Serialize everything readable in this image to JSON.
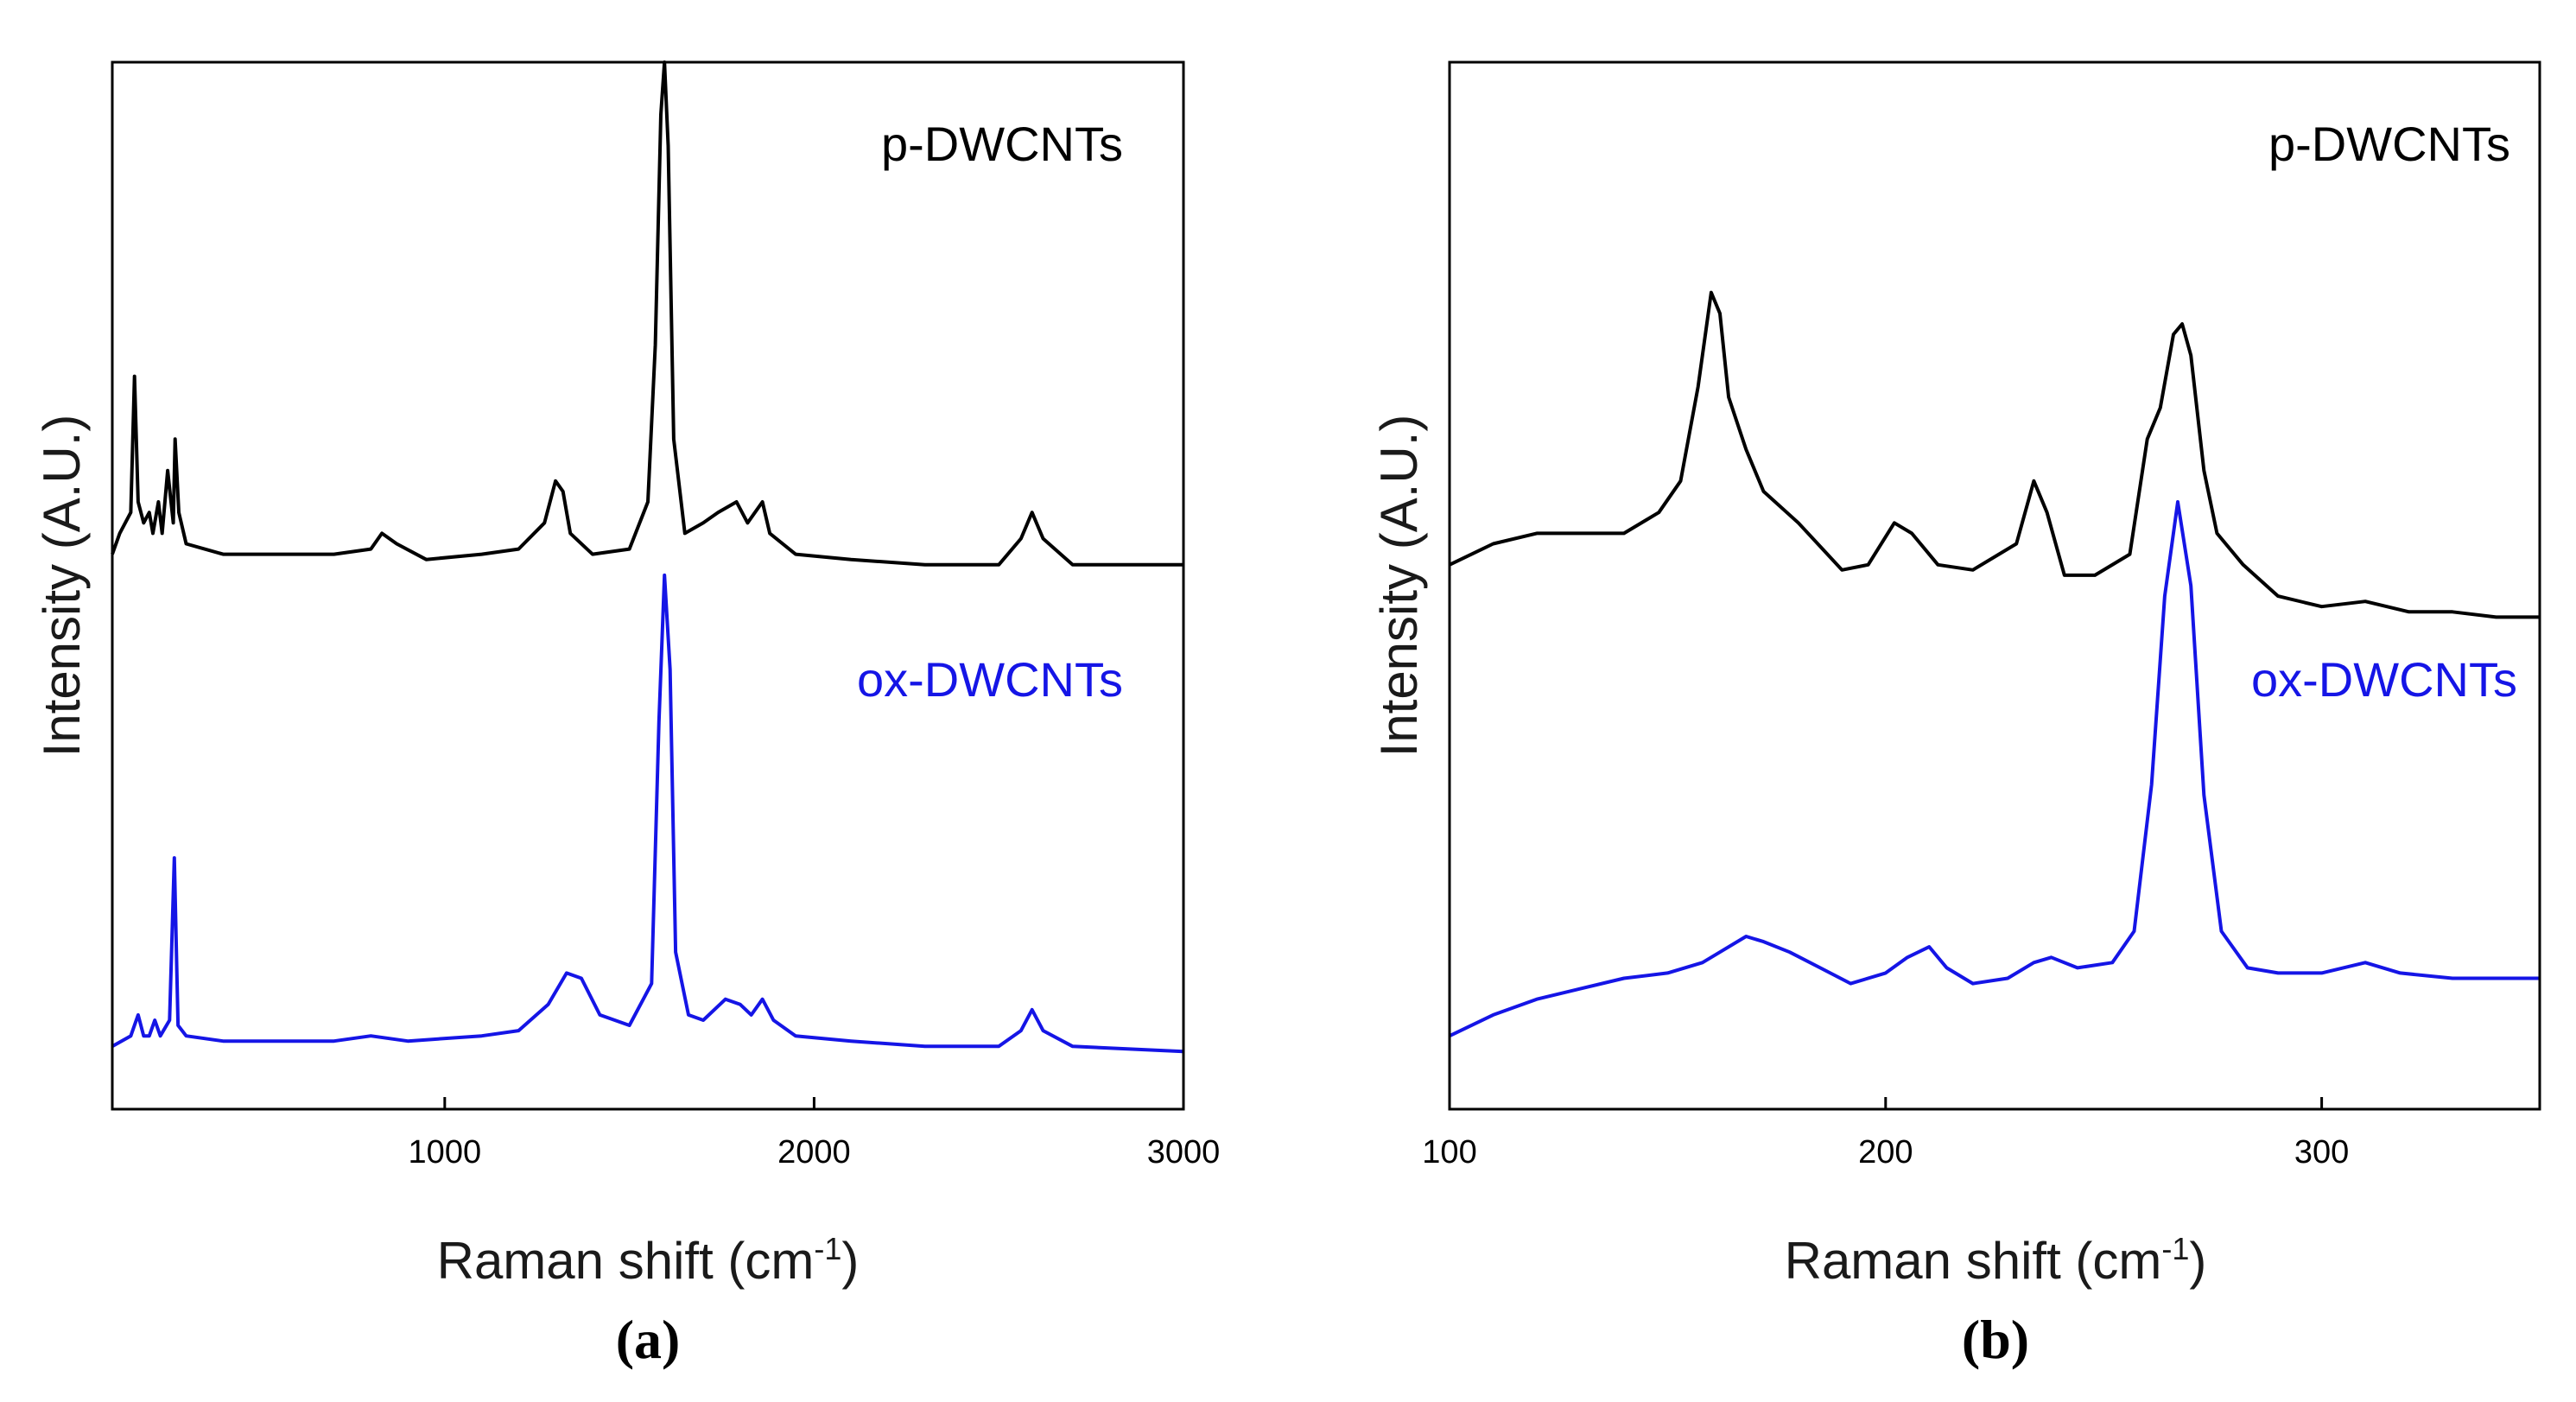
{
  "colors": {
    "p": "#000000",
    "ox": "#1515e6",
    "axis": "#000000"
  },
  "chart_data": [
    {
      "panel_label": "(a)",
      "type": "line",
      "xlabel": "Raman shift (cm-1)",
      "xlabel_main": "Raman shift (cm",
      "xlabel_sup": "-1",
      "xlabel_tail": ")",
      "ylabel": "Intensity (A.U.)",
      "xlim": [
        100,
        3000
      ],
      "ylim": [
        0,
        1
      ],
      "x_ticks": [
        1000,
        2000,
        3000
      ],
      "x_tick_labels": [
        "1000",
        "2000",
        "3000"
      ],
      "series": [
        {
          "name": "p-DWCNTs",
          "color": "#000000",
          "points": [
            [
              100,
              0.53
            ],
            [
              120,
              0.55
            ],
            [
              150,
              0.57
            ],
            [
              160,
              0.7
            ],
            [
              170,
              0.58
            ],
            [
              185,
              0.56
            ],
            [
              200,
              0.57
            ],
            [
              210,
              0.55
            ],
            [
              225,
              0.58
            ],
            [
              235,
              0.55
            ],
            [
              250,
              0.61
            ],
            [
              265,
              0.56
            ],
            [
              270,
              0.64
            ],
            [
              280,
              0.57
            ],
            [
              300,
              0.54
            ],
            [
              400,
              0.53
            ],
            [
              500,
              0.53
            ],
            [
              700,
              0.53
            ],
            [
              800,
              0.535
            ],
            [
              830,
              0.55
            ],
            [
              870,
              0.54
            ],
            [
              950,
              0.525
            ],
            [
              1100,
              0.53
            ],
            [
              1200,
              0.535
            ],
            [
              1270,
              0.56
            ],
            [
              1300,
              0.6
            ],
            [
              1320,
              0.59
            ],
            [
              1340,
              0.55
            ],
            [
              1400,
              0.53
            ],
            [
              1500,
              0.535
            ],
            [
              1550,
              0.58
            ],
            [
              1570,
              0.73
            ],
            [
              1585,
              0.95
            ],
            [
              1595,
              1.0
            ],
            [
              1605,
              0.92
            ],
            [
              1620,
              0.64
            ],
            [
              1650,
              0.55
            ],
            [
              1700,
              0.56
            ],
            [
              1740,
              0.57
            ],
            [
              1790,
              0.58
            ],
            [
              1820,
              0.56
            ],
            [
              1860,
              0.58
            ],
            [
              1880,
              0.55
            ],
            [
              1950,
              0.53
            ],
            [
              2100,
              0.525
            ],
            [
              2300,
              0.52
            ],
            [
              2500,
              0.52
            ],
            [
              2560,
              0.545
            ],
            [
              2590,
              0.57
            ],
            [
              2620,
              0.545
            ],
            [
              2700,
              0.52
            ],
            [
              3000,
              0.52
            ]
          ]
        },
        {
          "name": "ox-DWCNTs",
          "color": "#1515e6",
          "points": [
            [
              100,
              0.06
            ],
            [
              150,
              0.07
            ],
            [
              170,
              0.09
            ],
            [
              185,
              0.07
            ],
            [
              200,
              0.07
            ],
            [
              215,
              0.085
            ],
            [
              230,
              0.07
            ],
            [
              255,
              0.085
            ],
            [
              268,
              0.24
            ],
            [
              278,
              0.08
            ],
            [
              300,
              0.07
            ],
            [
              400,
              0.065
            ],
            [
              700,
              0.065
            ],
            [
              800,
              0.07
            ],
            [
              900,
              0.065
            ],
            [
              1100,
              0.07
            ],
            [
              1200,
              0.075
            ],
            [
              1280,
              0.1
            ],
            [
              1330,
              0.13
            ],
            [
              1370,
              0.125
            ],
            [
              1420,
              0.09
            ],
            [
              1500,
              0.08
            ],
            [
              1560,
              0.12
            ],
            [
              1580,
              0.37
            ],
            [
              1595,
              0.51
            ],
            [
              1610,
              0.42
            ],
            [
              1625,
              0.15
            ],
            [
              1660,
              0.09
            ],
            [
              1700,
              0.085
            ],
            [
              1760,
              0.105
            ],
            [
              1800,
              0.1
            ],
            [
              1830,
              0.09
            ],
            [
              1860,
              0.105
            ],
            [
              1890,
              0.085
            ],
            [
              1950,
              0.07
            ],
            [
              2100,
              0.065
            ],
            [
              2300,
              0.06
            ],
            [
              2500,
              0.06
            ],
            [
              2560,
              0.075
            ],
            [
              2590,
              0.095
            ],
            [
              2620,
              0.075
            ],
            [
              2700,
              0.06
            ],
            [
              3000,
              0.055
            ]
          ]
        }
      ]
    },
    {
      "panel_label": "(b)",
      "type": "line",
      "xlabel": "Raman shift (cm-1)",
      "xlabel_main": "Raman shift (cm",
      "xlabel_sup": "-1",
      "xlabel_tail": ")",
      "ylabel": "Intensity (A.U.)",
      "xlim": [
        100,
        350
      ],
      "ylim": [
        0,
        1
      ],
      "x_ticks": [
        100,
        200,
        300
      ],
      "x_tick_labels": [
        "100",
        "200",
        "300"
      ],
      "series": [
        {
          "name": "p-DWCNTs",
          "color": "#000000",
          "points": [
            [
              100,
              0.52
            ],
            [
              110,
              0.54
            ],
            [
              120,
              0.55
            ],
            [
              130,
              0.55
            ],
            [
              140,
              0.55
            ],
            [
              148,
              0.57
            ],
            [
              153,
              0.6
            ],
            [
              157,
              0.69
            ],
            [
              160,
              0.78
            ],
            [
              162,
              0.76
            ],
            [
              164,
              0.68
            ],
            [
              168,
              0.63
            ],
            [
              172,
              0.59
            ],
            [
              180,
              0.56
            ],
            [
              190,
              0.515
            ],
            [
              196,
              0.52
            ],
            [
              202,
              0.56
            ],
            [
              206,
              0.55
            ],
            [
              212,
              0.52
            ],
            [
              220,
              0.515
            ],
            [
              226,
              0.53
            ],
            [
              230,
              0.54
            ],
            [
              234,
              0.6
            ],
            [
              237,
              0.57
            ],
            [
              241,
              0.51
            ],
            [
              248,
              0.51
            ],
            [
              256,
              0.53
            ],
            [
              260,
              0.64
            ],
            [
              263,
              0.67
            ],
            [
              266,
              0.74
            ],
            [
              268,
              0.75
            ],
            [
              270,
              0.72
            ],
            [
              273,
              0.61
            ],
            [
              276,
              0.55
            ],
            [
              282,
              0.52
            ],
            [
              290,
              0.49
            ],
            [
              300,
              0.48
            ],
            [
              310,
              0.485
            ],
            [
              320,
              0.475
            ],
            [
              330,
              0.475
            ],
            [
              340,
              0.47
            ],
            [
              350,
              0.47
            ]
          ]
        },
        {
          "name": "ox-DWCNTs",
          "color": "#1515e6",
          "points": [
            [
              100,
              0.07
            ],
            [
              110,
              0.09
            ],
            [
              120,
              0.105
            ],
            [
              130,
              0.115
            ],
            [
              140,
              0.125
            ],
            [
              150,
              0.13
            ],
            [
              158,
              0.14
            ],
            [
              162,
              0.15
            ],
            [
              168,
              0.165
            ],
            [
              172,
              0.16
            ],
            [
              178,
              0.15
            ],
            [
              185,
              0.135
            ],
            [
              192,
              0.12
            ],
            [
              200,
              0.13
            ],
            [
              205,
              0.145
            ],
            [
              210,
              0.155
            ],
            [
              214,
              0.135
            ],
            [
              220,
              0.12
            ],
            [
              228,
              0.125
            ],
            [
              234,
              0.14
            ],
            [
              238,
              0.145
            ],
            [
              244,
              0.135
            ],
            [
              252,
              0.14
            ],
            [
              257,
              0.17
            ],
            [
              261,
              0.31
            ],
            [
              264,
              0.49
            ],
            [
              267,
              0.58
            ],
            [
              270,
              0.5
            ],
            [
              273,
              0.3
            ],
            [
              277,
              0.17
            ],
            [
              283,
              0.135
            ],
            [
              290,
              0.13
            ],
            [
              300,
              0.13
            ],
            [
              310,
              0.14
            ],
            [
              318,
              0.13
            ],
            [
              330,
              0.125
            ],
            [
              340,
              0.125
            ],
            [
              350,
              0.125
            ]
          ]
        }
      ]
    }
  ]
}
